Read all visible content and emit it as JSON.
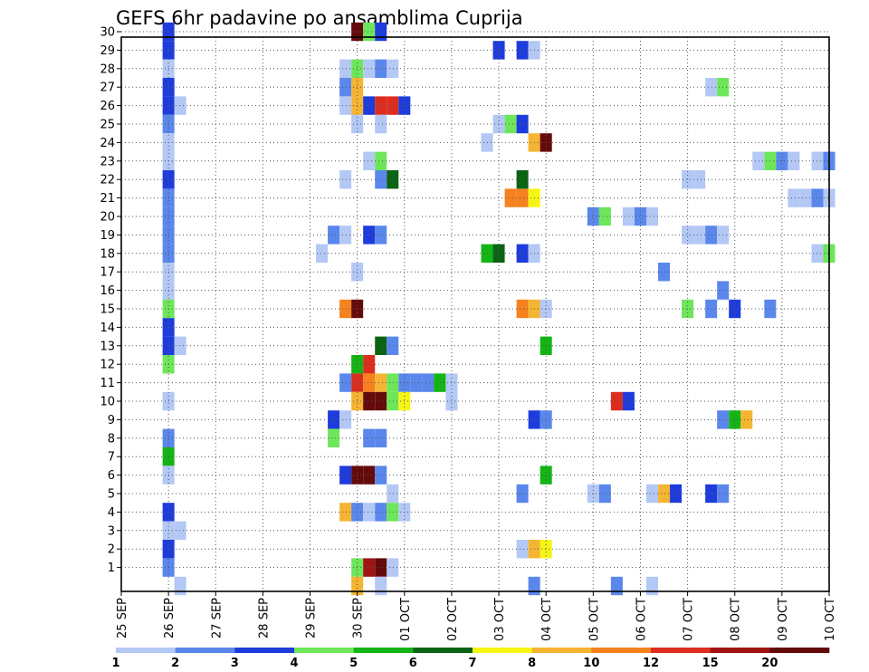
{
  "chart_data": {
    "type": "heatmap",
    "title": "GEFS 6hr padavine po ansamblima Cuprija",
    "x_tick_labels": [
      "25 SEP",
      "26 SEP",
      "27 SEP",
      "28 SEP",
      "29 SEP",
      "30 SEP",
      "01 OCT",
      "02 OCT",
      "03 OCT",
      "04 OCT",
      "05 OCT",
      "06 OCT",
      "07 OCT",
      "08 OCT",
      "09 OCT",
      "10 OCT"
    ],
    "y_range": [
      1,
      30
    ],
    "grid": true,
    "legend": "bottom",
    "colorbar": {
      "labels": [
        "1",
        "2",
        "3",
        "4",
        "5",
        "6",
        "7",
        "8",
        "10",
        "12",
        "15",
        "20"
      ],
      "colors": [
        "#b4c8f5",
        "#5a87eb",
        "#1e3cdc",
        "#6ee65a",
        "#14b414",
        "#0a6414",
        "#f5f514",
        "#f5b432",
        "#f5821e",
        "#dc2d1e",
        "#a01414",
        "#640a0a"
      ]
    },
    "cells": [
      {
        "x": "26 SEP 00",
        "y": 30,
        "cat": 3
      },
      {
        "x": "26 SEP 00",
        "y": 29,
        "cat": 3
      },
      {
        "x": "26 SEP 00",
        "y": 28,
        "cat": 1
      },
      {
        "x": "26 SEP 00",
        "y": 27,
        "cat": 3
      },
      {
        "x": "26 SEP 00",
        "y": 26,
        "cat": 3
      },
      {
        "x": "26 SEP 06",
        "y": 26,
        "cat": 1
      },
      {
        "x": "26 SEP 00",
        "y": 25,
        "cat": 2
      },
      {
        "x": "26 SEP 00",
        "y": 24,
        "cat": 1
      },
      {
        "x": "26 SEP 00",
        "y": 23,
        "cat": 1
      },
      {
        "x": "26 SEP 00",
        "y": 22,
        "cat": 3
      },
      {
        "x": "26 SEP 00",
        "y": 21,
        "cat": 2
      },
      {
        "x": "26 SEP 00",
        "y": 20,
        "cat": 2
      },
      {
        "x": "26 SEP 00",
        "y": 19,
        "cat": 2
      },
      {
        "x": "26 SEP 00",
        "y": 18,
        "cat": 2
      },
      {
        "x": "26 SEP 00",
        "y": 17,
        "cat": 1
      },
      {
        "x": "26 SEP 00",
        "y": 16,
        "cat": 1
      },
      {
        "x": "26 SEP 00",
        "y": 15,
        "cat": 4
      },
      {
        "x": "26 SEP 00",
        "y": 14,
        "cat": 3
      },
      {
        "x": "26 SEP 00",
        "y": 13,
        "cat": 3
      },
      {
        "x": "26 SEP 06",
        "y": 13,
        "cat": 1
      },
      {
        "x": "26 SEP 00",
        "y": 12,
        "cat": 4
      },
      {
        "x": "26 SEP 00",
        "y": 10,
        "cat": 1
      },
      {
        "x": "26 SEP 00",
        "y": 8,
        "cat": 2
      },
      {
        "x": "26 SEP 00",
        "y": 7,
        "cat": 5
      },
      {
        "x": "26 SEP 00",
        "y": 6,
        "cat": 1
      },
      {
        "x": "26 SEP 00",
        "y": 4,
        "cat": 3
      },
      {
        "x": "26 SEP 00",
        "y": 3,
        "cat": 1
      },
      {
        "x": "26 SEP 06",
        "y": 3,
        "cat": 1
      },
      {
        "x": "26 SEP 00",
        "y": 2,
        "cat": 3
      },
      {
        "x": "26 SEP 00",
        "y": 1,
        "cat": 2
      },
      {
        "x": "26 SEP 06",
        "y": 0,
        "cat": 1
      },
      {
        "x": "30 SEP 00",
        "y": 30,
        "cat": 12
      },
      {
        "x": "30 SEP 06",
        "y": 30,
        "cat": 4
      },
      {
        "x": "30 SEP 12",
        "y": 30,
        "cat": 3
      },
      {
        "x": "29 SEP 18",
        "y": 28,
        "cat": 1
      },
      {
        "x": "30 SEP 00",
        "y": 28,
        "cat": 4
      },
      {
        "x": "30 SEP 06",
        "y": 28,
        "cat": 1
      },
      {
        "x": "30 SEP 12",
        "y": 28,
        "cat": 2
      },
      {
        "x": "30 SEP 18",
        "y": 28,
        "cat": 1
      },
      {
        "x": "29 SEP 18",
        "y": 27,
        "cat": 2
      },
      {
        "x": "30 SEP 00",
        "y": 27,
        "cat": 8
      },
      {
        "x": "29 SEP 18",
        "y": 26,
        "cat": 1
      },
      {
        "x": "30 SEP 00",
        "y": 26,
        "cat": 8
      },
      {
        "x": "30 SEP 06",
        "y": 26,
        "cat": 3
      },
      {
        "x": "30 SEP 12",
        "y": 26,
        "cat": 10
      },
      {
        "x": "30 SEP 18",
        "y": 26,
        "cat": 10
      },
      {
        "x": "01 OCT 00",
        "y": 26,
        "cat": 3
      },
      {
        "x": "30 SEP 00",
        "y": 25,
        "cat": 1
      },
      {
        "x": "30 SEP 12",
        "y": 25,
        "cat": 1
      },
      {
        "x": "30 SEP 06",
        "y": 23,
        "cat": 1
      },
      {
        "x": "30 SEP 12",
        "y": 23,
        "cat": 4
      },
      {
        "x": "29 SEP 18",
        "y": 22,
        "cat": 1
      },
      {
        "x": "30 SEP 12",
        "y": 22,
        "cat": 2
      },
      {
        "x": "30 SEP 18",
        "y": 22,
        "cat": 6
      },
      {
        "x": "29 SEP 12",
        "y": 19,
        "cat": 2
      },
      {
        "x": "29 SEP 18",
        "y": 19,
        "cat": 1
      },
      {
        "x": "30 SEP 06",
        "y": 19,
        "cat": 3
      },
      {
        "x": "30 SEP 12",
        "y": 19,
        "cat": 2
      },
      {
        "x": "29 SEP 06",
        "y": 18,
        "cat": 1
      },
      {
        "x": "30 SEP 00",
        "y": 17,
        "cat": 1
      },
      {
        "x": "29 SEP 18",
        "y": 15,
        "cat": 9
      },
      {
        "x": "30 SEP 00",
        "y": 15,
        "cat": 12
      },
      {
        "x": "30 SEP 12",
        "y": 13,
        "cat": 6
      },
      {
        "x": "30 SEP 18",
        "y": 13,
        "cat": 2
      },
      {
        "x": "30 SEP 00",
        "y": 12,
        "cat": 5
      },
      {
        "x": "30 SEP 06",
        "y": 12,
        "cat": 10
      },
      {
        "x": "29 SEP 18",
        "y": 11,
        "cat": 2
      },
      {
        "x": "30 SEP 00",
        "y": 11,
        "cat": 10
      },
      {
        "x": "30 SEP 06",
        "y": 11,
        "cat": 9
      },
      {
        "x": "30 SEP 12",
        "y": 11,
        "cat": 8
      },
      {
        "x": "30 SEP 18",
        "y": 11,
        "cat": 4
      },
      {
        "x": "01 OCT 00",
        "y": 11,
        "cat": 2
      },
      {
        "x": "01 OCT 06",
        "y": 11,
        "cat": 2
      },
      {
        "x": "01 OCT 12",
        "y": 11,
        "cat": 2
      },
      {
        "x": "01 OCT 18",
        "y": 11,
        "cat": 5
      },
      {
        "x": "02 OCT 00",
        "y": 11,
        "cat": 1
      },
      {
        "x": "30 SEP 00",
        "y": 10,
        "cat": 8
      },
      {
        "x": "30 SEP 06",
        "y": 10,
        "cat": 12
      },
      {
        "x": "30 SEP 12",
        "y": 10,
        "cat": 12
      },
      {
        "x": "30 SEP 18",
        "y": 10,
        "cat": 4
      },
      {
        "x": "01 OCT 00",
        "y": 10,
        "cat": 7
      },
      {
        "x": "02 OCT 00",
        "y": 10,
        "cat": 1
      },
      {
        "x": "29 SEP 12",
        "y": 9,
        "cat": 3
      },
      {
        "x": "29 SEP 18",
        "y": 9,
        "cat": 1
      },
      {
        "x": "29 SEP 12",
        "y": 8,
        "cat": 4
      },
      {
        "x": "30 SEP 06",
        "y": 8,
        "cat": 2
      },
      {
        "x": "30 SEP 12",
        "y": 8,
        "cat": 2
      },
      {
        "x": "29 SEP 18",
        "y": 6,
        "cat": 3
      },
      {
        "x": "30 SEP 00",
        "y": 6,
        "cat": 12
      },
      {
        "x": "30 SEP 06",
        "y": 6,
        "cat": 12
      },
      {
        "x": "30 SEP 12",
        "y": 6,
        "cat": 2
      },
      {
        "x": "30 SEP 18",
        "y": 5,
        "cat": 1
      },
      {
        "x": "29 SEP 18",
        "y": 4,
        "cat": 8
      },
      {
        "x": "30 SEP 00",
        "y": 4,
        "cat": 2
      },
      {
        "x": "30 SEP 06",
        "y": 4,
        "cat": 1
      },
      {
        "x": "30 SEP 12",
        "y": 4,
        "cat": 2
      },
      {
        "x": "30 SEP 18",
        "y": 4,
        "cat": 4
      },
      {
        "x": "01 OCT 00",
        "y": 4,
        "cat": 1
      },
      {
        "x": "30 SEP 00",
        "y": 1,
        "cat": 4
      },
      {
        "x": "30 SEP 06",
        "y": 1,
        "cat": 11
      },
      {
        "x": "30 SEP 12",
        "y": 1,
        "cat": 12
      },
      {
        "x": "30 SEP 18",
        "y": 1,
        "cat": 1
      },
      {
        "x": "30 SEP 00",
        "y": 0,
        "cat": 8
      },
      {
        "x": "30 SEP 12",
        "y": 0,
        "cat": 1
      },
      {
        "x": "03 OCT 00",
        "y": 29,
        "cat": 3
      },
      {
        "x": "03 OCT 12",
        "y": 29,
        "cat": 3
      },
      {
        "x": "03 OCT 18",
        "y": 29,
        "cat": 1
      },
      {
        "x": "03 OCT 00",
        "y": 25,
        "cat": 1
      },
      {
        "x": "03 OCT 06",
        "y": 25,
        "cat": 4
      },
      {
        "x": "03 OCT 12",
        "y": 25,
        "cat": 3
      },
      {
        "x": "02 OCT 18",
        "y": 24,
        "cat": 1
      },
      {
        "x": "03 OCT 18",
        "y": 24,
        "cat": 8
      },
      {
        "x": "04 OCT 00",
        "y": 24,
        "cat": 12
      },
      {
        "x": "03 OCT 12",
        "y": 22,
        "cat": 6
      },
      {
        "x": "03 OCT 06",
        "y": 21,
        "cat": 9
      },
      {
        "x": "03 OCT 12",
        "y": 21,
        "cat": 9
      },
      {
        "x": "03 OCT 18",
        "y": 21,
        "cat": 7
      },
      {
        "x": "02 OCT 18",
        "y": 18,
        "cat": 5
      },
      {
        "x": "03 OCT 00",
        "y": 18,
        "cat": 6
      },
      {
        "x": "03 OCT 12",
        "y": 18,
        "cat": 3
      },
      {
        "x": "03 OCT 18",
        "y": 18,
        "cat": 1
      },
      {
        "x": "03 OCT 12",
        "y": 15,
        "cat": 9
      },
      {
        "x": "03 OCT 18",
        "y": 15,
        "cat": 8
      },
      {
        "x": "04 OCT 00",
        "y": 15,
        "cat": 1
      },
      {
        "x": "04 OCT 00",
        "y": 13,
        "cat": 5
      },
      {
        "x": "03 OCT 18",
        "y": 9,
        "cat": 3
      },
      {
        "x": "04 OCT 00",
        "y": 9,
        "cat": 2
      },
      {
        "x": "04 OCT 00",
        "y": 6,
        "cat": 5
      },
      {
        "x": "03 OCT 12",
        "y": 5,
        "cat": 2
      },
      {
        "x": "03 OCT 12",
        "y": 2,
        "cat": 1
      },
      {
        "x": "03 OCT 18",
        "y": 2,
        "cat": 8
      },
      {
        "x": "04 OCT 00",
        "y": 2,
        "cat": 7
      },
      {
        "x": "03 OCT 18",
        "y": 0,
        "cat": 2
      },
      {
        "x": "05 OCT 00",
        "y": 20,
        "cat": 2
      },
      {
        "x": "05 OCT 06",
        "y": 20,
        "cat": 4
      },
      {
        "x": "05 OCT 18",
        "y": 20,
        "cat": 1
      },
      {
        "x": "06 OCT 00",
        "y": 20,
        "cat": 2
      },
      {
        "x": "06 OCT 06",
        "y": 20,
        "cat": 1
      },
      {
        "x": "06 OCT 12",
        "y": 17,
        "cat": 2
      },
      {
        "x": "05 OCT 12",
        "y": 10,
        "cat": 10
      },
      {
        "x": "05 OCT 18",
        "y": 10,
        "cat": 3
      },
      {
        "x": "05 OCT 00",
        "y": 5,
        "cat": 1
      },
      {
        "x": "05 OCT 06",
        "y": 5,
        "cat": 2
      },
      {
        "x": "06 OCT 06",
        "y": 5,
        "cat": 1
      },
      {
        "x": "06 OCT 12",
        "y": 5,
        "cat": 8
      },
      {
        "x": "06 OCT 18",
        "y": 5,
        "cat": 3
      },
      {
        "x": "05 OCT 12",
        "y": 0,
        "cat": 2
      },
      {
        "x": "06 OCT 06",
        "y": 0,
        "cat": 1
      },
      {
        "x": "07 OCT 12",
        "y": 27,
        "cat": 1
      },
      {
        "x": "07 OCT 18",
        "y": 27,
        "cat": 4
      },
      {
        "x": "07 OCT 00",
        "y": 22,
        "cat": 1
      },
      {
        "x": "07 OCT 06",
        "y": 22,
        "cat": 1
      },
      {
        "x": "07 OCT 00",
        "y": 19,
        "cat": 1
      },
      {
        "x": "07 OCT 06",
        "y": 19,
        "cat": 1
      },
      {
        "x": "07 OCT 12",
        "y": 19,
        "cat": 2
      },
      {
        "x": "07 OCT 18",
        "y": 19,
        "cat": 1
      },
      {
        "x": "07 OCT 18",
        "y": 16,
        "cat": 2
      },
      {
        "x": "07 OCT 00",
        "y": 15,
        "cat": 4
      },
      {
        "x": "07 OCT 12",
        "y": 15,
        "cat": 2
      },
      {
        "x": "08 OCT 00",
        "y": 15,
        "cat": 3
      },
      {
        "x": "08 OCT 18",
        "y": 15,
        "cat": 2
      },
      {
        "x": "07 OCT 18",
        "y": 9,
        "cat": 2
      },
      {
        "x": "08 OCT 00",
        "y": 9,
        "cat": 5
      },
      {
        "x": "08 OCT 06",
        "y": 9,
        "cat": 8
      },
      {
        "x": "07 OCT 12",
        "y": 5,
        "cat": 3
      },
      {
        "x": "07 OCT 18",
        "y": 5,
        "cat": 2
      },
      {
        "x": "08 OCT 12",
        "y": 23,
        "cat": 1
      },
      {
        "x": "08 OCT 18",
        "y": 23,
        "cat": 4
      },
      {
        "x": "09 OCT 00",
        "y": 23,
        "cat": 2
      },
      {
        "x": "09 OCT 06",
        "y": 23,
        "cat": 1
      },
      {
        "x": "09 OCT 18",
        "y": 23,
        "cat": 1
      },
      {
        "x": "10 OCT 00",
        "y": 23,
        "cat": 2
      },
      {
        "x": "09 OCT 06",
        "y": 21,
        "cat": 1
      },
      {
        "x": "09 OCT 12",
        "y": 21,
        "cat": 1
      },
      {
        "x": "09 OCT 18",
        "y": 21,
        "cat": 2
      },
      {
        "x": "10 OCT 00",
        "y": 21,
        "cat": 1
      },
      {
        "x": "09 OCT 18",
        "y": 18,
        "cat": 1
      },
      {
        "x": "10 OCT 00",
        "y": 18,
        "cat": 4
      }
    ]
  }
}
